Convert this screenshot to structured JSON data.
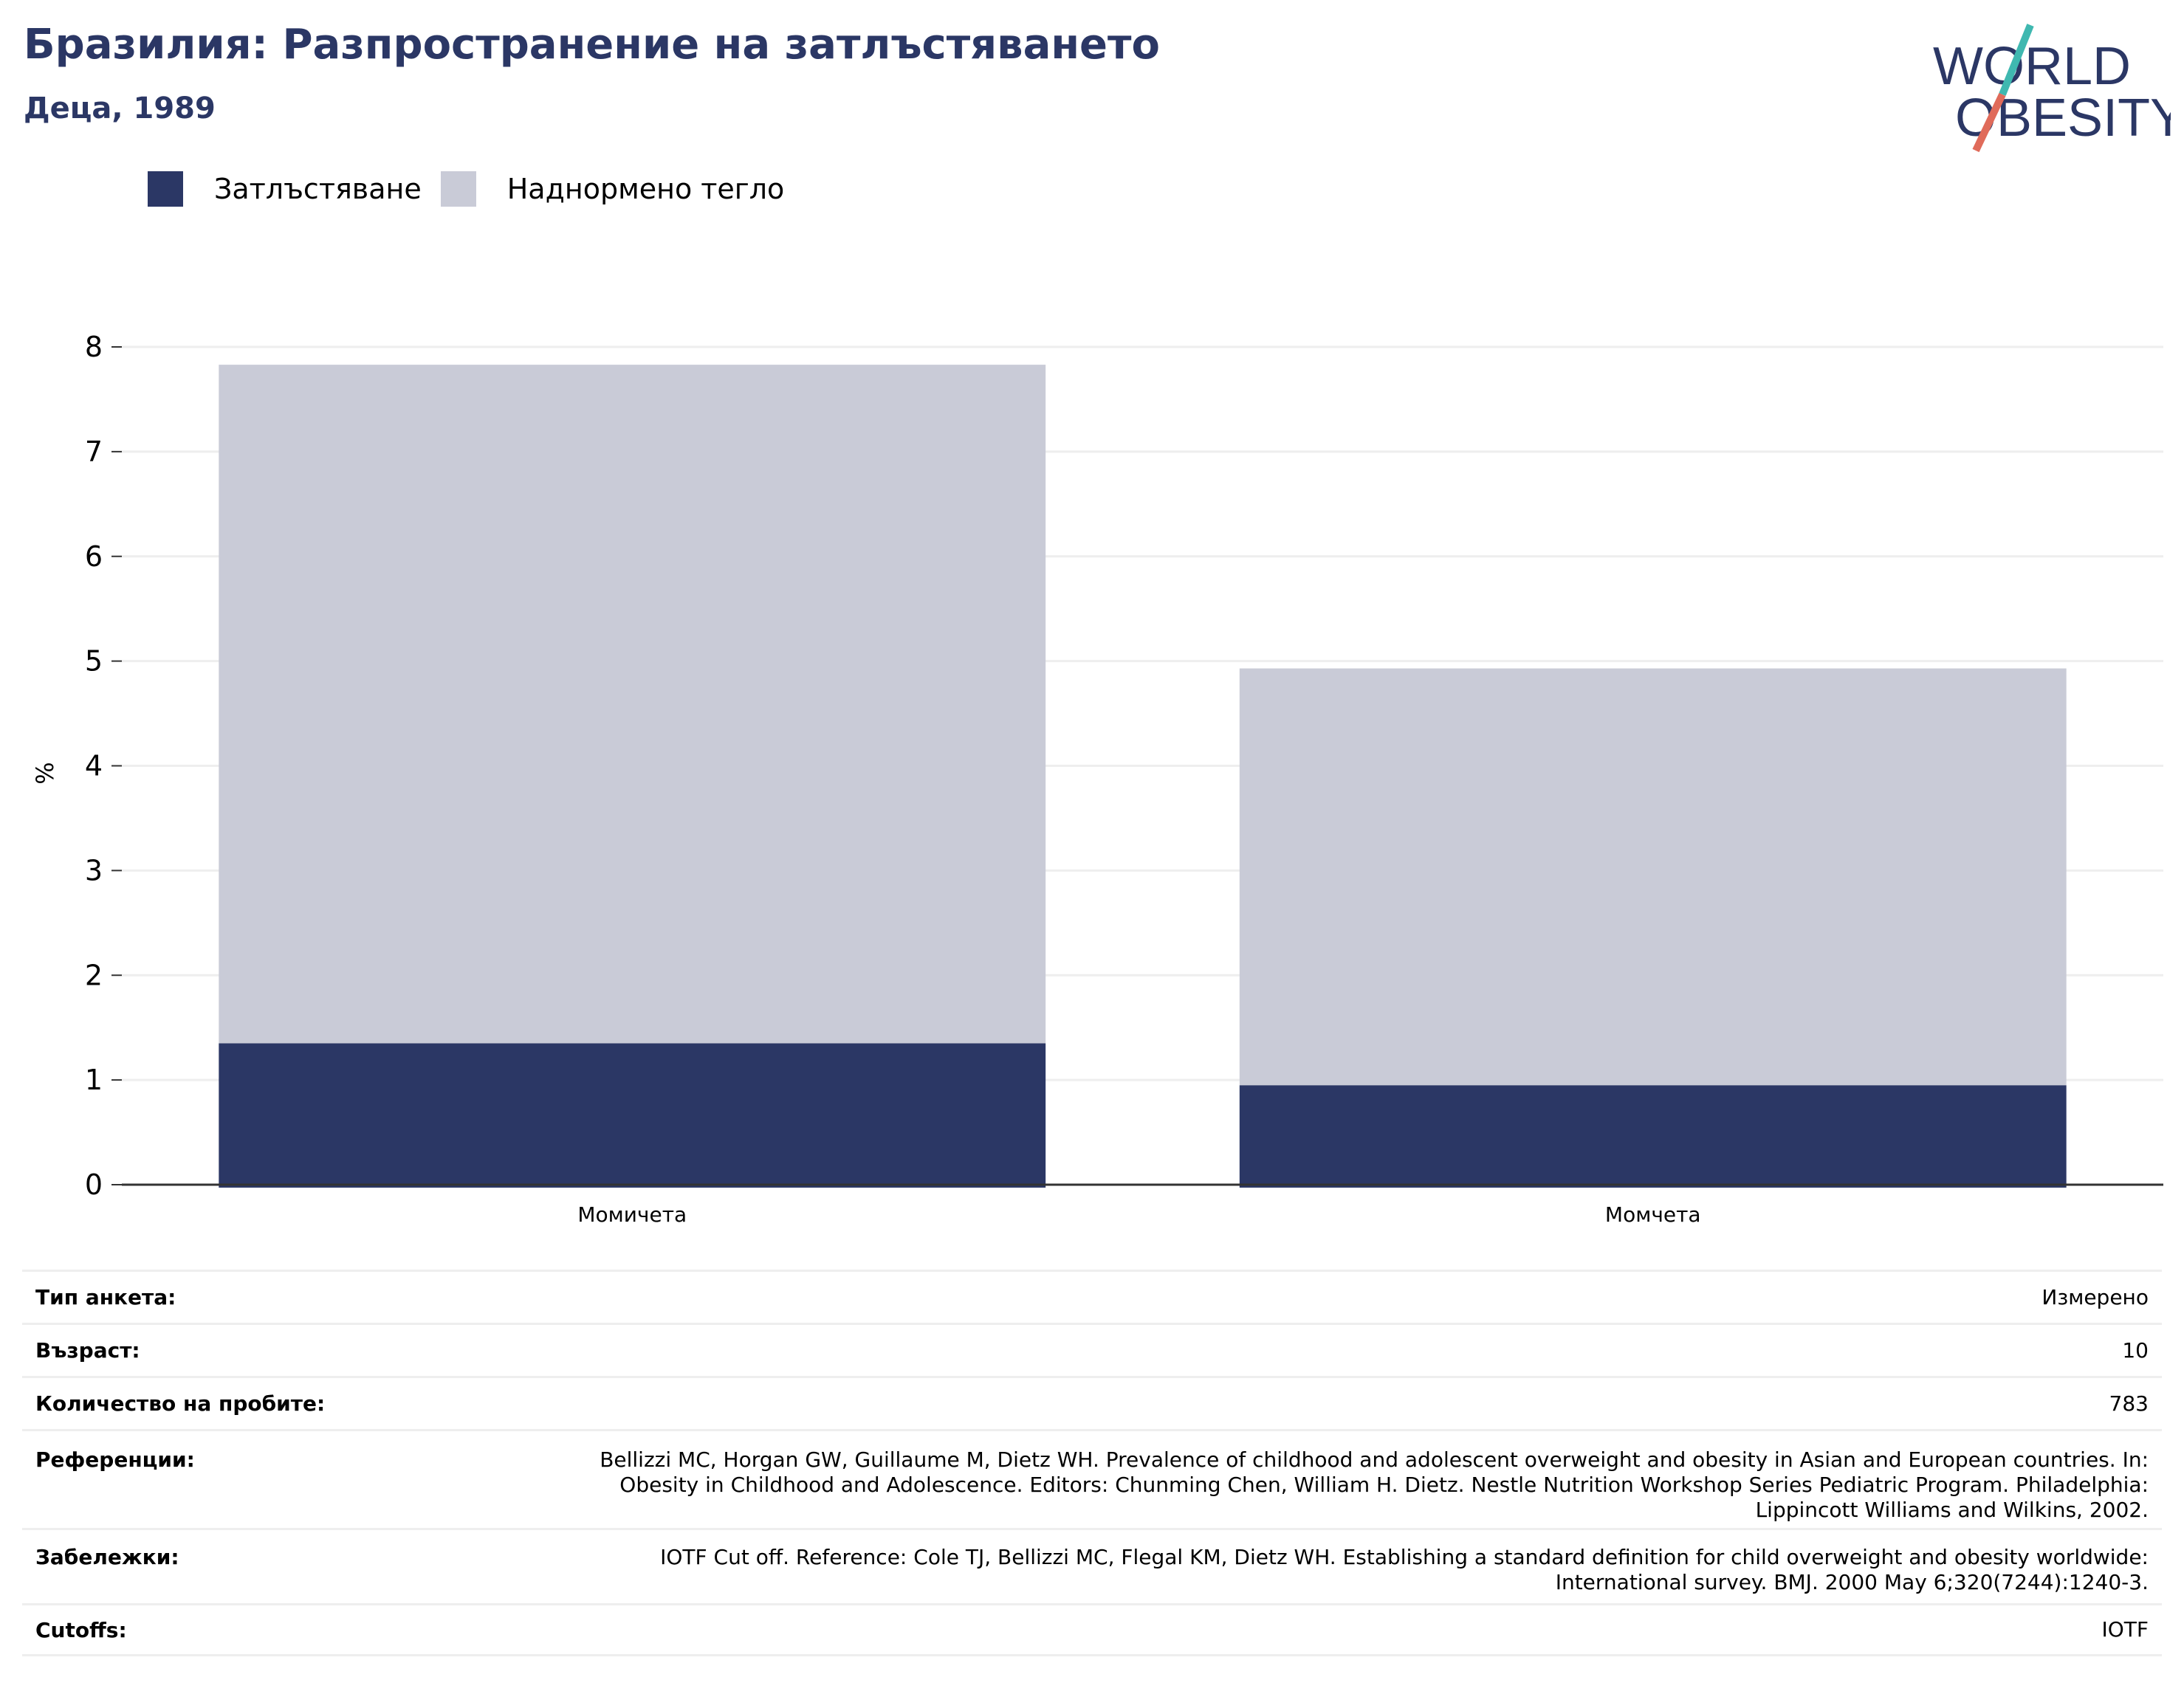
{
  "header": {
    "title": "Бразилия: Разпространение на затлъстяването",
    "subtitle": "Деца, 1989"
  },
  "logo": {
    "line1": "WORLD",
    "line2": "OBESITY",
    "colors": {
      "text": "#2b3765",
      "slash_top": "#3fb8b0",
      "slash_bottom": "#e06b5a"
    }
  },
  "colors": {
    "obesity": "#2b3765",
    "overweight": "#c9cbd7",
    "grid": "#eeeeee",
    "axis": "#333333"
  },
  "chart_data": {
    "type": "bar",
    "stacked": true,
    "categories": [
      "Момичета",
      "Момчета"
    ],
    "series": [
      {
        "name": "Затлъстяване",
        "values": [
          1.35,
          0.95
        ]
      },
      {
        "name": "Наднормено тегло",
        "values": [
          6.48,
          3.98
        ]
      }
    ],
    "ylabel": "%",
    "ylim": [
      0,
      8
    ],
    "yticks": [
      0,
      1,
      2,
      3,
      4,
      5,
      6,
      7,
      8
    ],
    "grid": true,
    "legend": "top-left"
  },
  "info": [
    {
      "label": "Тип анкета:",
      "value": "Измерено"
    },
    {
      "label": "Възраст:",
      "value": "10"
    },
    {
      "label": "Количество на пробите:",
      "value": "783"
    },
    {
      "label": "Референции:",
      "value": "Bellizzi MC, Horgan GW, Guillaume M, Dietz WH. Prevalence of childhood and adolescent overweight and obesity in Asian and European countries. In: Obesity in Childhood and Adolescence. Editors: Chunming Chen, William H. Dietz. Nestle Nutrition Workshop Series Pediatric Program. Philadelphia: Lippincott Williams and Wilkins, 2002."
    },
    {
      "label": "Забележки:",
      "value": "IOTF Cut off. Reference: Cole TJ, Bellizzi MC, Flegal KM, Dietz WH. Establishing a standard definition for child overweight and obesity worldwide: International survey. BMJ. 2000 May 6;320(7244):1240-3."
    },
    {
      "label": "Cutoffs:",
      "value": "IOTF"
    }
  ]
}
